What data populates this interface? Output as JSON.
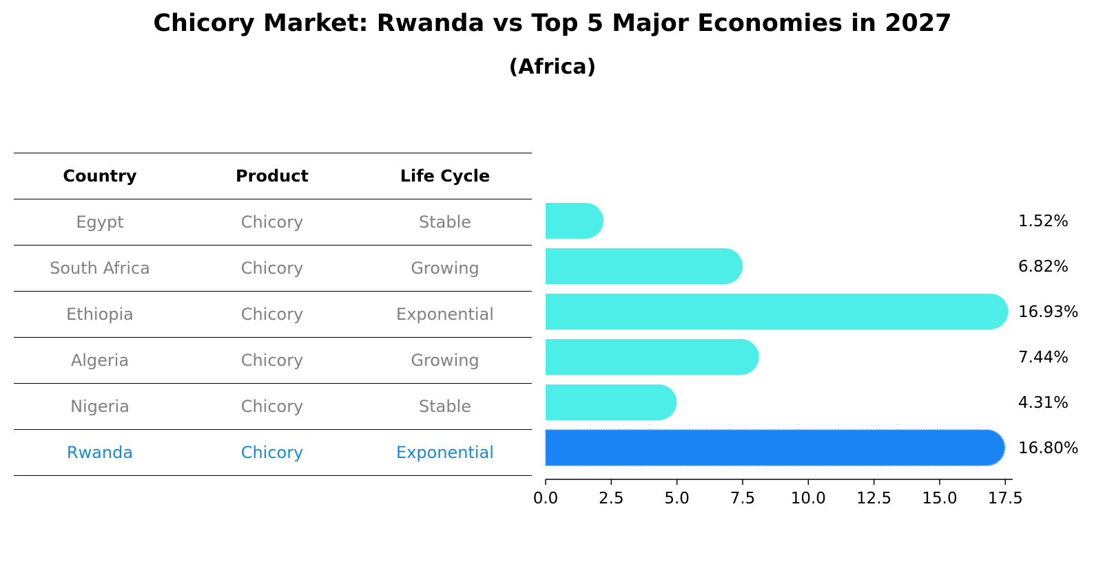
{
  "chart_data": {
    "type": "bar",
    "orientation": "horizontal",
    "title": "Chicory Market: Rwanda vs Top 5 Major Economies in 2027",
    "subtitle": "(Africa)",
    "table": {
      "headers": [
        "Country",
        "Product",
        "Life Cycle"
      ],
      "rows": [
        {
          "country": "Egypt",
          "product": "Chicory",
          "life_cycle": "Stable"
        },
        {
          "country": "South Africa",
          "product": "Chicory",
          "life_cycle": "Growing"
        },
        {
          "country": "Ethiopia",
          "product": "Chicory",
          "life_cycle": "Exponential"
        },
        {
          "country": "Algeria",
          "product": "Chicory",
          "life_cycle": "Growing"
        },
        {
          "country": "Nigeria",
          "product": "Chicory",
          "life_cycle": "Stable"
        },
        {
          "country": "Rwanda",
          "product": "Chicory",
          "life_cycle": "Exponential"
        }
      ]
    },
    "categories": [
      "Egypt",
      "South Africa",
      "Ethiopia",
      "Algeria",
      "Nigeria",
      "Rwanda"
    ],
    "values": [
      1.52,
      6.82,
      16.93,
      7.44,
      4.31,
      16.8
    ],
    "value_labels": [
      "1.52%",
      "6.82%",
      "16.93%",
      "7.44%",
      "4.31%",
      "16.80%"
    ],
    "highlight": "Rwanda",
    "xlim": [
      0,
      17.78
    ],
    "xticks": [
      0.0,
      2.5,
      5.0,
      7.5,
      10.0,
      12.5,
      15.0,
      17.5
    ],
    "xtick_labels": [
      "0.0",
      "2.5",
      "5.0",
      "7.5",
      "10.0",
      "12.5",
      "15.0",
      "17.5"
    ],
    "colors": {
      "bar": "#4deee8",
      "highlight_bar": "#1a84f4",
      "highlight_text": "#1a8ad4",
      "text": "#808080"
    }
  }
}
